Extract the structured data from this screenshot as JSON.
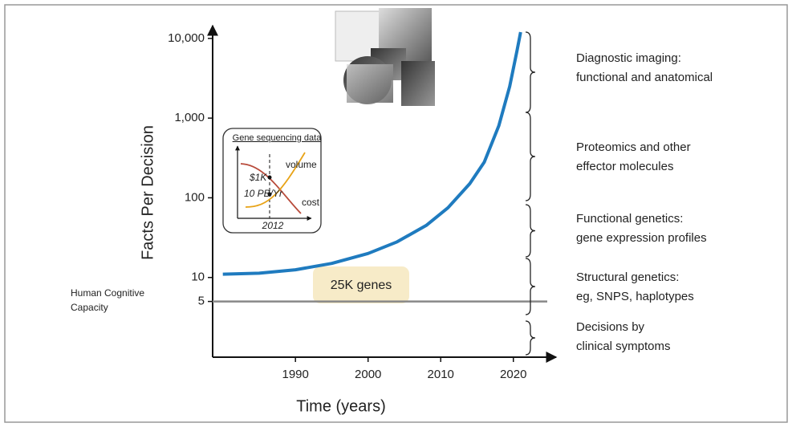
{
  "chart_data": {
    "type": "line",
    "x_label": "Time (years)",
    "y_label": "Facts Per Decision",
    "y_scale": "log",
    "x": [
      1980,
      1985,
      1990,
      1995,
      2000,
      2004,
      2008,
      2011,
      2014,
      2016,
      2018,
      2019.5,
      2020.5,
      2021
    ],
    "series": [
      {
        "color": "#1f7bbf",
        "values": [
          11,
          11.3,
          12.5,
          15,
          20,
          28,
          45,
          75,
          150,
          280,
          800,
          2500,
          7000,
          12000
        ]
      }
    ],
    "xlim": [
      1978.6,
      2025
    ],
    "xticks": [
      1990,
      2000,
      2010,
      2020
    ],
    "ylim": [
      1,
      12000
    ],
    "yticks": [
      5,
      10,
      100,
      {
        "value": 1000,
        "label": "1,000"
      },
      {
        "value": 10000,
        "label": "10,000"
      }
    ],
    "threshold": {
      "value": 5,
      "lines": [
        "Human Cognitive",
        "Capacity"
      ],
      "color": "#888888"
    },
    "stages": [
      {
        "lines": [
          "Diagnostic imaging:",
          "functional and anatomical"
        ]
      },
      {
        "lines": [
          "Proteomics and other",
          "effector molecules"
        ]
      },
      {
        "lines": [
          "Functional genetics:",
          "gene expression profiles"
        ]
      },
      {
        "lines": [
          "Structural genetics:",
          "eg, SNPS, haplotypes"
        ]
      },
      {
        "lines": [
          "Decisions by",
          "clinical symptoms"
        ]
      }
    ],
    "annotation": "25K genes",
    "inset": {
      "title": "Gene sequencing data",
      "x_label": "2012",
      "price": "$1K",
      "volume_rate": "10 PB/Yr",
      "volume_label": "volume",
      "cost_label": "cost"
    }
  }
}
